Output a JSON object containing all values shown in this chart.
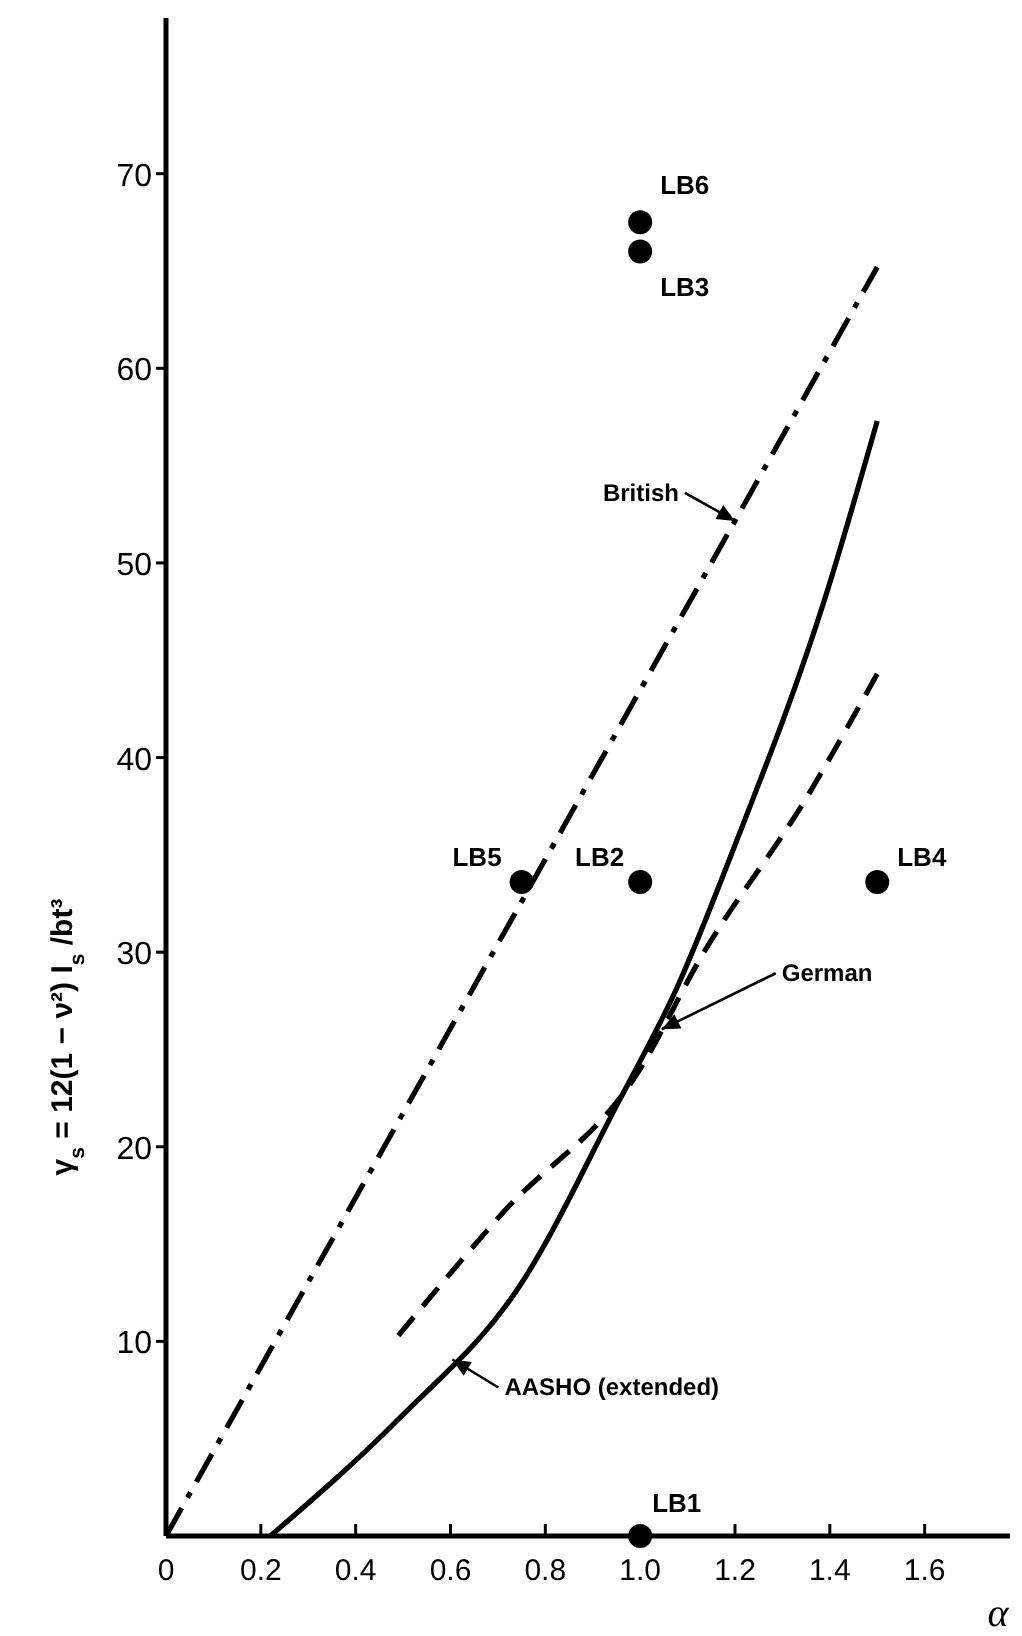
{
  "chart_data": {
    "type": "line",
    "xlabel": "α",
    "ylabel": "γ$_{s}$ = 12(1 − ν²) I$_{s}$ /bt³",
    "xlim": [
      0,
      1.78
    ],
    "ylim": [
      0,
      78
    ],
    "xticks": [
      0,
      0.2,
      0.4,
      0.6,
      0.8,
      {
        "value": 1,
        "label": "1.0"
      },
      1.2,
      1.4,
      1.6
    ],
    "yticks": [
      10,
      20,
      30,
      40,
      50,
      60,
      70
    ],
    "grid": false,
    "series": [
      {
        "name": "British",
        "color": "#000000",
        "line_style": "dashdot",
        "marker": "none",
        "x": [
          0,
          1.5
        ],
        "values": [
          0,
          65.2
        ]
      },
      {
        "name": "AASHO (extended)",
        "color": "#000000",
        "line_style": "solid",
        "marker": "none",
        "x": [
          0.22,
          0.49,
          0.75,
          0.95,
          1.08,
          1.2,
          1.39,
          1.5
        ],
        "values": [
          0,
          6,
          13,
          22.1,
          28.3,
          35.5,
          48.2,
          57.3
        ]
      },
      {
        "name": "German",
        "color": "#000000",
        "line_style": "dashed",
        "marker": "none",
        "x": [
          0.49,
          0.71,
          1.0,
          1.125,
          1.35,
          1.5
        ],
        "values": [
          10.3,
          16.6,
          24,
          29.6,
          37.9,
          44.3
        ]
      },
      {
        "type": "scatter",
        "color": "#000000",
        "marker": "circle",
        "x": [
          1.0,
          1.0,
          0.75,
          1.0,
          1.5,
          1.0
        ],
        "values": [
          67.5,
          66,
          33.6,
          33.6,
          33.6,
          0
        ]
      }
    ],
    "annotations": [
      {
        "text": "LB6",
        "x": 1.0,
        "y": 67.5
      },
      {
        "text": "LB3",
        "x": 1.0,
        "y": 66
      },
      {
        "text": "LB5",
        "x": 0.75,
        "y": 33.6
      },
      {
        "text": "LB2",
        "x": 1.0,
        "y": 33.6
      },
      {
        "text": "LB4",
        "x": 1.5,
        "y": 33.6
      },
      {
        "text": "LB1",
        "x": 1.0,
        "y": 0
      }
    ]
  }
}
